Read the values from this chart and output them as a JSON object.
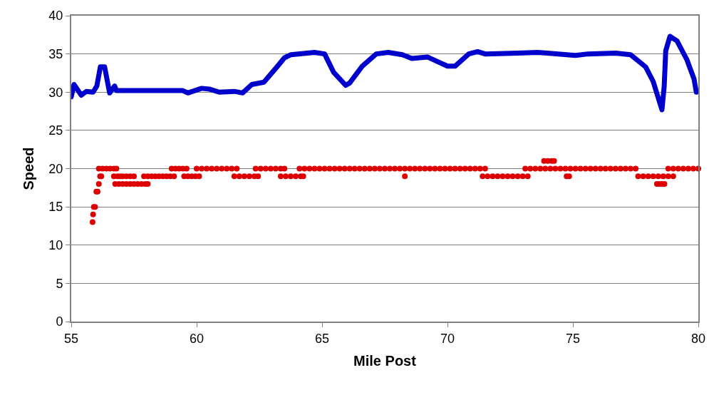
{
  "chart_data": {
    "type": "scatter",
    "xlabel": "Mile Post",
    "ylabel": "Speed",
    "xlim": [
      55,
      80
    ],
    "xticks": [
      55,
      60,
      65,
      70,
      75,
      80
    ],
    "ylim": [
      0,
      40
    ],
    "yticks": [
      0,
      5,
      10,
      15,
      20,
      25,
      30,
      35,
      40
    ],
    "grid": "y",
    "series": [
      {
        "type": "line",
        "color": "#0000cc",
        "x": [
          55.0,
          55.11,
          55.4,
          55.6,
          55.87,
          56.02,
          56.16,
          56.33,
          56.53,
          56.73,
          56.8,
          57.5,
          58.5,
          59.45,
          59.65,
          60.2,
          60.5,
          60.9,
          61.5,
          61.83,
          62.2,
          62.68,
          63.2,
          63.5,
          63.76,
          64.7,
          65.1,
          65.46,
          65.94,
          66.1,
          66.6,
          67.16,
          67.64,
          68.2,
          68.58,
          69.2,
          69.6,
          70.0,
          70.3,
          70.85,
          71.2,
          71.5,
          72.8,
          73.6,
          75.1,
          75.6,
          76.7,
          77.3,
          77.9,
          78.2,
          78.55,
          78.64,
          78.7,
          78.87,
          79.15,
          79.55,
          79.83,
          79.92
        ],
        "values": [
          29.4,
          31.0,
          29.6,
          30.1,
          30.0,
          30.8,
          33.3,
          33.3,
          29.9,
          30.8,
          30.2,
          30.2,
          30.2,
          30.2,
          29.9,
          30.5,
          30.4,
          30.0,
          30.1,
          29.9,
          31.0,
          31.3,
          33.3,
          34.5,
          34.9,
          35.2,
          35.0,
          32.6,
          30.9,
          31.2,
          33.4,
          35.0,
          35.2,
          34.9,
          34.4,
          34.6,
          34.0,
          33.4,
          33.4,
          35.0,
          35.3,
          35.0,
          35.1,
          35.2,
          34.8,
          35.0,
          35.1,
          34.9,
          33.3,
          31.4,
          27.7,
          30.8,
          35.4,
          37.3,
          36.7,
          34.2,
          31.7,
          30.0
        ]
      },
      {
        "color": "#dd0000",
        "marker": "circle",
        "x": [
          55.85,
          55.87,
          55.9,
          55.95,
          56.0,
          56.05,
          56.1,
          56.15,
          56.2,
          56.1,
          56.25,
          56.4,
          56.55,
          56.7,
          56.8,
          56.7,
          56.85,
          56.95,
          56.75,
          56.9,
          57.05,
          57.2,
          57.05,
          57.2,
          57.35,
          57.5,
          57.35,
          57.5,
          57.65,
          57.8,
          57.95,
          58.05,
          57.9,
          58.05,
          58.2,
          58.35,
          58.5,
          58.65,
          58.8,
          58.95,
          59.1,
          59.0,
          59.15,
          59.3,
          59.45,
          59.6,
          59.5,
          59.65,
          59.8,
          59.95,
          60.1,
          60.0,
          60.2,
          60.4,
          60.6,
          60.8,
          61.0,
          61.2,
          61.4,
          61.6,
          61.5,
          61.7,
          61.9,
          62.1,
          62.3,
          62.45,
          62.35,
          62.55,
          62.75,
          62.95,
          63.15,
          63.35,
          63.5,
          63.35,
          63.55,
          63.75,
          63.95,
          64.15,
          64.25,
          64.1,
          64.3,
          64.5,
          64.7,
          64.9,
          65.1,
          65.3,
          65.5,
          65.7,
          65.9,
          66.1,
          66.3,
          66.5,
          66.7,
          66.9,
          67.1,
          67.3,
          67.5,
          67.7,
          67.9,
          68.1,
          68.3,
          68.5,
          68.7,
          68.9,
          69.1,
          69.3,
          69.5,
          69.7,
          69.9,
          70.1,
          70.3,
          70.5,
          70.7,
          70.9,
          71.1,
          71.3,
          71.5,
          68.3,
          71.4,
          71.6,
          71.8,
          72.0,
          72.2,
          72.4,
          72.6,
          72.8,
          73.0,
          73.2,
          73.1,
          73.3,
          73.5,
          73.7,
          73.9,
          73.85,
          74.0,
          74.15,
          74.25,
          74.1,
          74.3,
          74.5,
          74.7,
          74.9,
          75.1,
          75.3,
          75.5,
          75.7,
          75.9,
          76.1,
          76.3,
          76.5,
          76.7,
          76.9,
          77.1,
          77.3,
          77.5,
          74.75,
          74.85,
          77.6,
          77.8,
          78.0,
          78.2,
          78.4,
          78.6,
          78.8,
          79.0,
          78.35,
          78.45,
          78.55,
          78.65,
          78.8,
          79.0,
          79.2,
          79.4,
          79.6,
          79.8,
          80.0
        ],
        "values": [
          13,
          14,
          15,
          15,
          17,
          17,
          18,
          19,
          19,
          20,
          20,
          20,
          20,
          20,
          20,
          19,
          19,
          19,
          18,
          18,
          18,
          18,
          19,
          19,
          19,
          19,
          18,
          18,
          18,
          18,
          18,
          18,
          19,
          19,
          19,
          19,
          19,
          19,
          19,
          19,
          19,
          20,
          20,
          20,
          20,
          20,
          19,
          19,
          19,
          19,
          19,
          20,
          20,
          20,
          20,
          20,
          20,
          20,
          20,
          20,
          19,
          19,
          19,
          19,
          19,
          19,
          20,
          20,
          20,
          20,
          20,
          20,
          20,
          19,
          19,
          19,
          19,
          19,
          19,
          20,
          20,
          20,
          20,
          20,
          20,
          20,
          20,
          20,
          20,
          20,
          20,
          20,
          20,
          20,
          20,
          20,
          20,
          20,
          20,
          20,
          20,
          20,
          20,
          20,
          20,
          20,
          20,
          20,
          20,
          20,
          20,
          20,
          20,
          20,
          20,
          20,
          20,
          19,
          19,
          19,
          19,
          19,
          19,
          19,
          19,
          19,
          19,
          19,
          20,
          20,
          20,
          20,
          20,
          21,
          21,
          21,
          21,
          20,
          20,
          20,
          20,
          20,
          20,
          20,
          20,
          20,
          20,
          20,
          20,
          20,
          20,
          20,
          20,
          20,
          20,
          19,
          19,
          19,
          19,
          19,
          19,
          19,
          19,
          19,
          19,
          18,
          18,
          18,
          18,
          20,
          20,
          20,
          20,
          20,
          20,
          20
        ]
      }
    ]
  }
}
